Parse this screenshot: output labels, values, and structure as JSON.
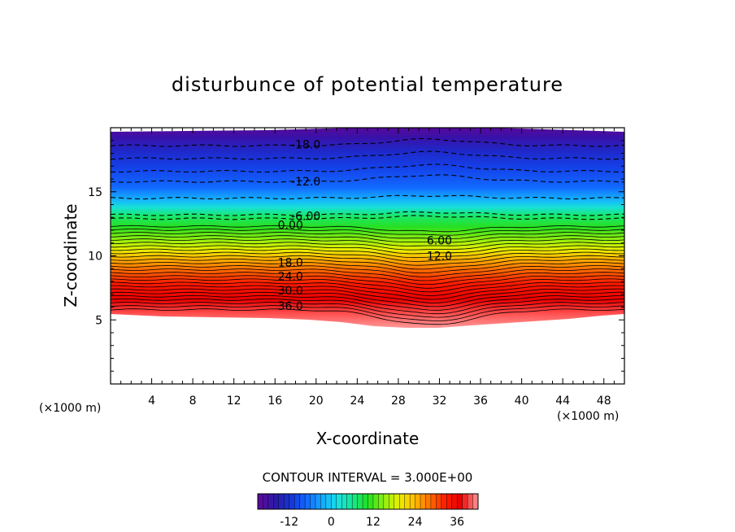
{
  "chart_data": {
    "type": "contour",
    "title": "disturbunce of potential temperature",
    "xlabel": "X-coordinate",
    "ylabel": "Z-coordinate",
    "x_unit": "(×1000 m)",
    "x_unit_right": "(×1000 m)",
    "xlim": [
      0,
      50
    ],
    "ylim": [
      0,
      20
    ],
    "x_ticks": [
      "4",
      "8",
      "12",
      "16",
      "20",
      "24",
      "28",
      "32",
      "36",
      "40",
      "44",
      "48"
    ],
    "y_ticks": [
      "5",
      "10",
      "15"
    ],
    "contour_interval": "CONTOUR INTERVAL = 3.000E+00",
    "colorbar": {
      "min": -21,
      "max": 42,
      "ticks": [
        "-12",
        "0",
        "12",
        "24",
        "36"
      ],
      "colors": [
        "#5a0a9a",
        "#2a1aa8",
        "#1536d8",
        "#1268ff",
        "#14a8ff",
        "#18e0e8",
        "#18e890",
        "#20e020",
        "#8af010",
        "#e8f000",
        "#ffc000",
        "#ff7000",
        "#ff2000",
        "#e80000",
        "#ff8080"
      ]
    },
    "contour_labels": [
      {
        "text": "-18.0",
        "x": 19,
        "y": 18.7
      },
      {
        "text": "-12.0",
        "x": 19,
        "y": 15.8
      },
      {
        "text": "-6.00",
        "x": 19,
        "y": 13.1
      },
      {
        "text": "0.00",
        "x": 17.5,
        "y": 12.4
      },
      {
        "text": "6.00",
        "x": 32,
        "y": 11.2
      },
      {
        "text": "12.0",
        "x": 32,
        "y": 10.0
      },
      {
        "text": "18.0",
        "x": 17.5,
        "y": 9.5
      },
      {
        "text": "24.0",
        "x": 17.5,
        "y": 8.4
      },
      {
        "text": "30.0",
        "x": 17.5,
        "y": 7.3
      },
      {
        "text": "36.0",
        "x": 17.5,
        "y": 6.1
      }
    ]
  }
}
